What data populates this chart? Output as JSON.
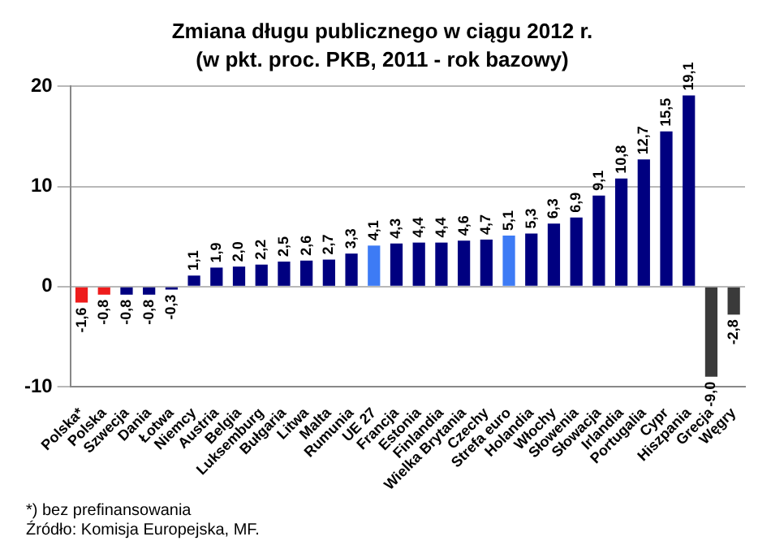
{
  "chart_data": {
    "type": "bar",
    "title": "Zmiana długu publicznego w ciągu 2012 r.",
    "subtitle": "(w pkt. proc. PKB, 2011 - rok bazowy)",
    "categories": [
      "Polska*",
      "Polska",
      "Szwecja",
      "Dania",
      "Łotwa",
      "Niemcy",
      "Austria",
      "Belgia",
      "Luksemburg",
      "Bułgaria",
      "Litwa",
      "Malta",
      "Rumunia",
      "UE 27",
      "Francja",
      "Estonia",
      "Finlandia",
      "Wielka Brytania",
      "Czechy",
      "Strefa euro",
      "Holandia",
      "Włochy",
      "Słowenia",
      "Słowacja",
      "Irlandia",
      "Portugalia",
      "Cypr",
      "Hiszpania",
      "Grecja",
      "Węgry"
    ],
    "values": [
      -1.6,
      -0.8,
      -0.8,
      -0.8,
      -0.3,
      1.1,
      1.9,
      2.0,
      2.2,
      2.5,
      2.6,
      2.7,
      3.3,
      4.1,
      4.3,
      4.4,
      4.4,
      4.6,
      4.7,
      5.1,
      5.3,
      6.3,
      6.9,
      9.1,
      10.8,
      12.7,
      15.5,
      19.1,
      -9.0,
      -2.8
    ],
    "value_labels": [
      "-1,6",
      "-0,8",
      "-0,8",
      "-0,8",
      "-0,3",
      "1,1",
      "1,9",
      "2,0",
      "2,2",
      "2,5",
      "2,6",
      "2,7",
      "3,3",
      "4,1",
      "4,3",
      "4,4",
      "4,4",
      "4,6",
      "4,7",
      "5,1",
      "5,3",
      "6,3",
      "6,9",
      "9,1",
      "10,8",
      "12,7",
      "15,5",
      "19,1",
      "-9,0",
      "-2,8"
    ],
    "colors": [
      "#ee1c1c",
      "#ee1c1c",
      "#000080",
      "#000080",
      "#000080",
      "#000080",
      "#000080",
      "#000080",
      "#000080",
      "#000080",
      "#000080",
      "#000080",
      "#000080",
      "#3d7bf5",
      "#000080",
      "#000080",
      "#000080",
      "#000080",
      "#000080",
      "#3d7bf5",
      "#000080",
      "#000080",
      "#000080",
      "#000080",
      "#000080",
      "#000080",
      "#000080",
      "#000080",
      "#3a3a3a",
      "#3a3a3a"
    ],
    "ylim": [
      -10,
      20
    ],
    "yticks": [
      -10,
      0,
      10,
      20
    ],
    "grid": "y",
    "annotations": [
      "*) bez prefinansowania",
      "Źródło: Komisja Europejska, MF."
    ]
  }
}
